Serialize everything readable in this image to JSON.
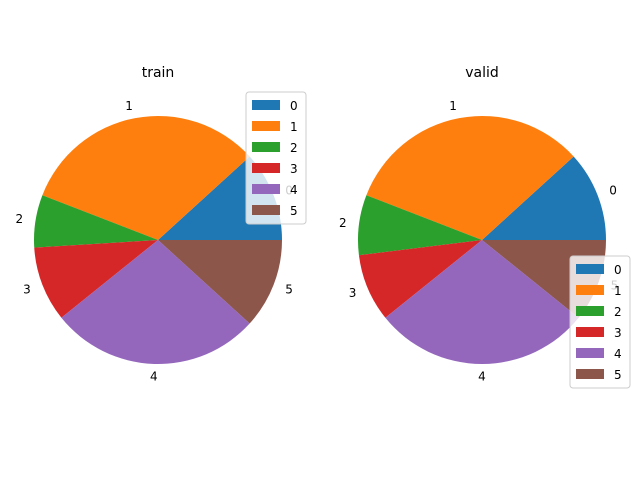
{
  "chart_data": [
    {
      "type": "pie",
      "title": "train",
      "labels": [
        "0",
        "1",
        "2",
        "3",
        "4",
        "5"
      ],
      "values": [
        12,
        33,
        7,
        10,
        28,
        12
      ],
      "colors": [
        "#1f77b4",
        "#ff7f0e",
        "#2ca02c",
        "#d62728",
        "#9467bd",
        "#8c564b"
      ],
      "legend": {
        "entries": [
          "0",
          "1",
          "2",
          "3",
          "4",
          "5"
        ],
        "placement": "upper right"
      }
    },
    {
      "type": "pie",
      "title": "valid",
      "labels": [
        "0",
        "1",
        "2",
        "3",
        "4",
        "5"
      ],
      "values": [
        12,
        33,
        8,
        9,
        29,
        11
      ],
      "colors": [
        "#1f77b4",
        "#ff7f0e",
        "#2ca02c",
        "#d62728",
        "#9467bd",
        "#8c564b"
      ],
      "legend": {
        "entries": [
          "0",
          "1",
          "2",
          "3",
          "4",
          "5"
        ],
        "placement": "lower right"
      }
    }
  ]
}
